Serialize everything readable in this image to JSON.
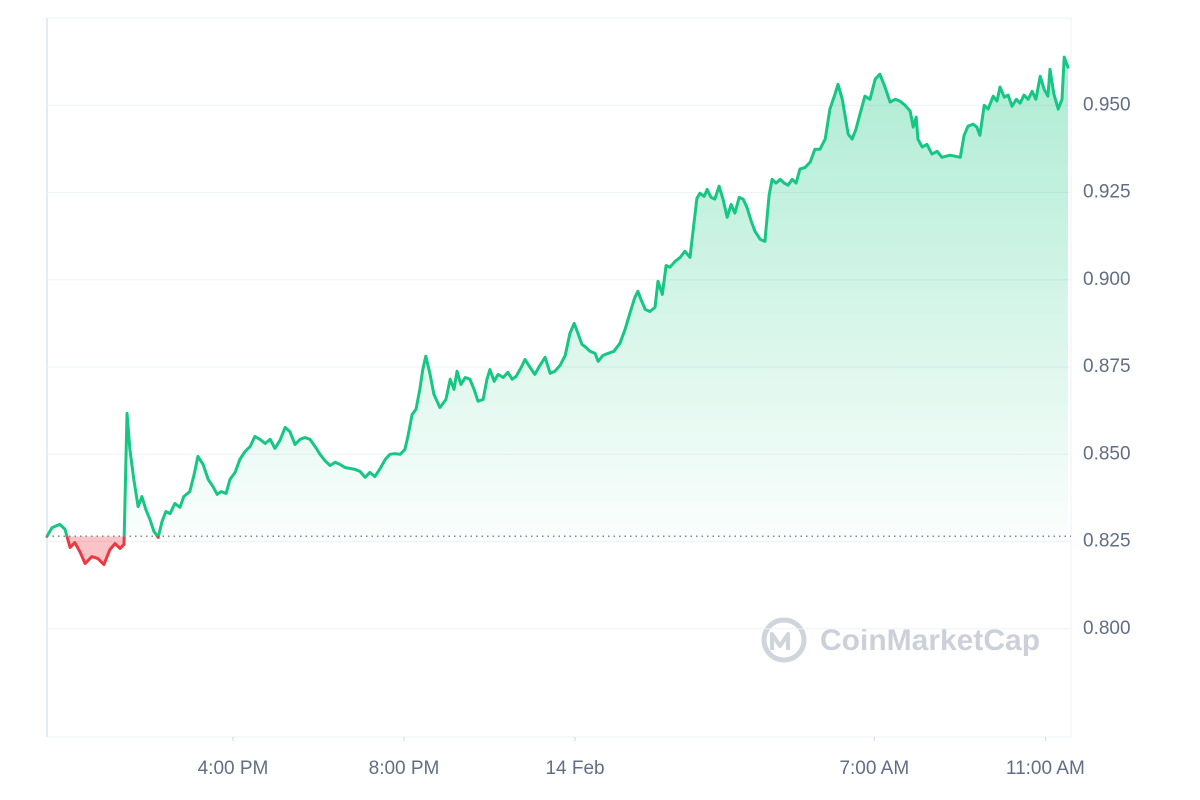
{
  "chart_data": {
    "type": "line",
    "watermark": "CoinMarketCap",
    "xlim": [
      -12.35,
      11.6
    ],
    "xticks": [
      {
        "value": -8,
        "label": "4:00 PM"
      },
      {
        "value": -4,
        "label": "8:00 PM"
      },
      {
        "value": 0,
        "label": "14 Feb"
      },
      {
        "value": 7,
        "label": "7:00 AM"
      },
      {
        "value": 11,
        "label": "11:00 AM"
      }
    ],
    "ylim": [
      0.769,
      0.975
    ],
    "yticks": [
      {
        "value": 0.8,
        "label": "0.800"
      },
      0.825,
      {
        "value": 0.85,
        "label": "0.850"
      },
      0.875,
      {
        "value": 0.9,
        "label": "0.900"
      },
      0.925,
      {
        "value": 0.95,
        "label": "0.950"
      }
    ],
    "grid": true,
    "baseline": 0.8265,
    "color": "#16c784",
    "down_color": "#ea3943",
    "x": [
      -12.35,
      -12.23,
      -12.05,
      -11.93,
      -11.81,
      -11.7,
      -11.58,
      -11.46,
      -11.3,
      -11.16,
      -11.02,
      -10.88,
      -10.76,
      -10.64,
      -10.55,
      -10.48,
      -10.41,
      -10.32,
      -10.22,
      -10.13,
      -10.04,
      -9.94,
      -9.85,
      -9.75,
      -9.66,
      -9.57,
      -9.47,
      -9.36,
      -9.24,
      -9.15,
      -9.01,
      -8.91,
      -8.82,
      -8.7,
      -8.58,
      -8.47,
      -8.37,
      -8.28,
      -8.16,
      -8.07,
      -7.95,
      -7.84,
      -7.72,
      -7.6,
      -7.49,
      -7.37,
      -7.25,
      -7.13,
      -7.02,
      -6.9,
      -6.78,
      -6.67,
      -6.55,
      -6.43,
      -6.32,
      -6.2,
      -6.08,
      -5.96,
      -5.85,
      -5.73,
      -5.61,
      -5.5,
      -5.38,
      -5.15,
      -5.03,
      -4.91,
      -4.8,
      -4.68,
      -4.56,
      -4.44,
      -4.33,
      -4.21,
      -4.09,
      -3.98,
      -3.91,
      -3.81,
      -3.72,
      -3.63,
      -3.56,
      -3.49,
      -3.39,
      -3.3,
      -3.16,
      -3.02,
      -2.92,
      -2.83,
      -2.76,
      -2.67,
      -2.57,
      -2.46,
      -2.36,
      -2.27,
      -2.15,
      -2.06,
      -1.99,
      -1.89,
      -1.8,
      -1.68,
      -1.57,
      -1.47,
      -1.38,
      -1.26,
      -1.17,
      -1.05,
      -0.94,
      -0.82,
      -0.7,
      -0.58,
      -0.47,
      -0.35,
      -0.23,
      -0.12,
      -0.02,
      0.07,
      0.16,
      0.26,
      0.35,
      0.47,
      0.54,
      0.65,
      0.77,
      0.91,
      1.05,
      1.17,
      1.29,
      1.4,
      1.47,
      1.54,
      1.64,
      1.75,
      1.87,
      1.94,
      2.04,
      2.13,
      2.22,
      2.34,
      2.46,
      2.57,
      2.69,
      2.76,
      2.85,
      2.92,
      3.02,
      3.09,
      3.18,
      3.27,
      3.37,
      3.46,
      3.56,
      3.65,
      3.74,
      3.84,
      3.93,
      4.02,
      4.12,
      4.21,
      4.33,
      4.44,
      4.54,
      4.61,
      4.7,
      4.8,
      4.89,
      4.98,
      5.08,
      5.17,
      5.26,
      5.38,
      5.5,
      5.61,
      5.73,
      5.85,
      5.96,
      6.08,
      6.15,
      6.25,
      6.39,
      6.48,
      6.57,
      6.67,
      6.78,
      6.9,
      7.02,
      7.13,
      7.25,
      7.37,
      7.49,
      7.6,
      7.72,
      7.84,
      7.91,
      7.98,
      8.02,
      8.12,
      8.23,
      8.35,
      8.47,
      8.58,
      8.77,
      9.01,
      9.1,
      9.19,
      9.31,
      9.4,
      9.47,
      9.57,
      9.66,
      9.78,
      9.87,
      9.94,
      10.04,
      10.13,
      10.22,
      10.32,
      10.41,
      10.5,
      10.6,
      10.69,
      10.78,
      10.88,
      10.97,
      11.06,
      11.11,
      11.2,
      11.3,
      11.39,
      11.44,
      11.53
    ],
    "values": [
      0.8265,
      0.829,
      0.8299,
      0.8285,
      0.8233,
      0.8247,
      0.8221,
      0.8187,
      0.8207,
      0.8201,
      0.8184,
      0.8227,
      0.8244,
      0.823,
      0.8242,
      0.8617,
      0.8514,
      0.8428,
      0.835,
      0.8379,
      0.8342,
      0.8313,
      0.8279,
      0.8262,
      0.8307,
      0.8336,
      0.833,
      0.8359,
      0.8348,
      0.8379,
      0.8393,
      0.8442,
      0.8494,
      0.8471,
      0.8428,
      0.8408,
      0.8385,
      0.8393,
      0.8388,
      0.8428,
      0.8448,
      0.8485,
      0.8508,
      0.8522,
      0.8551,
      0.8543,
      0.8531,
      0.8543,
      0.8517,
      0.854,
      0.8577,
      0.8565,
      0.8528,
      0.8543,
      0.8548,
      0.8543,
      0.8522,
      0.8499,
      0.8482,
      0.8468,
      0.8477,
      0.8471,
      0.8462,
      0.8457,
      0.8451,
      0.8434,
      0.8448,
      0.8436,
      0.8459,
      0.8485,
      0.85,
      0.8502,
      0.85,
      0.8514,
      0.8551,
      0.8614,
      0.8629,
      0.8686,
      0.8743,
      0.8781,
      0.8729,
      0.8672,
      0.8634,
      0.8657,
      0.8715,
      0.8686,
      0.8738,
      0.87,
      0.872,
      0.8715,
      0.8686,
      0.8652,
      0.8657,
      0.8715,
      0.8743,
      0.8709,
      0.8729,
      0.872,
      0.8735,
      0.8715,
      0.8723,
      0.8749,
      0.8772,
      0.8749,
      0.8729,
      0.8755,
      0.8778,
      0.8732,
      0.8738,
      0.8755,
      0.8783,
      0.8846,
      0.8875,
      0.8846,
      0.8815,
      0.8806,
      0.8795,
      0.8789,
      0.8766,
      0.8783,
      0.8789,
      0.8795,
      0.8818,
      0.8858,
      0.8907,
      0.895,
      0.8967,
      0.8944,
      0.8915,
      0.8909,
      0.8921,
      0.8996,
      0.8958,
      0.9041,
      0.9036,
      0.9053,
      0.9064,
      0.9082,
      0.9064,
      0.9139,
      0.9233,
      0.9248,
      0.9239,
      0.9259,
      0.9236,
      0.9231,
      0.9268,
      0.9231,
      0.9179,
      0.9216,
      0.9191,
      0.9236,
      0.9231,
      0.9208,
      0.9168,
      0.9139,
      0.9116,
      0.911,
      0.9242,
      0.9288,
      0.9277,
      0.9288,
      0.9277,
      0.9271,
      0.9288,
      0.9277,
      0.9317,
      0.9322,
      0.9337,
      0.9374,
      0.9374,
      0.9403,
      0.9489,
      0.9532,
      0.956,
      0.9517,
      0.9417,
      0.9403,
      0.9431,
      0.9477,
      0.9526,
      0.9517,
      0.9575,
      0.9589,
      0.9552,
      0.9509,
      0.9517,
      0.9512,
      0.95,
      0.9483,
      0.9437,
      0.9466,
      0.9403,
      0.938,
      0.9388,
      0.936,
      0.9368,
      0.9351,
      0.9357,
      0.9351,
      0.9414,
      0.944,
      0.9446,
      0.9437,
      0.9414,
      0.95,
      0.9489,
      0.9526,
      0.9512,
      0.9552,
      0.9523,
      0.9529,
      0.9497,
      0.9517,
      0.9506,
      0.9529,
      0.9517,
      0.954,
      0.9517,
      0.9583,
      0.9546,
      0.9526,
      0.9603,
      0.9532,
      0.9489,
      0.9517,
      0.9638,
      0.9609
    ]
  }
}
